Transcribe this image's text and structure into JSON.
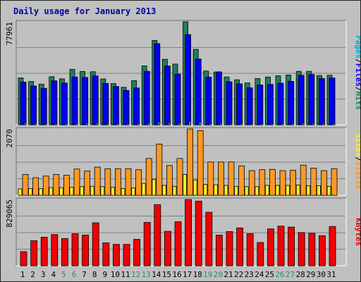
{
  "title": "Daily usage for January 2013",
  "colors": {
    "background": "#c0c0c0",
    "hits": "#1a8060",
    "files": "#0000ee",
    "pages": "#00b0d0",
    "visits": "#ff9922",
    "sites": "#ffee22",
    "kbytes": "#ee0000",
    "title": "#0000a0",
    "weekend_label": "#2a8a70"
  },
  "chart_data": [
    {
      "type": "bar",
      "ylim": [
        0,
        77961
      ],
      "max_label": "77961",
      "legend": [
        {
          "label": "Pages",
          "color": "#00b0d0"
        },
        {
          "label": "Files",
          "color": "#0000ee"
        },
        {
          "label": "Hits",
          "color": "#1a8060"
        }
      ],
      "categories": [
        "1",
        "2",
        "3",
        "4",
        "5",
        "6",
        "7",
        "8",
        "9",
        "10",
        "11",
        "12",
        "13",
        "14",
        "15",
        "16",
        "17",
        "18",
        "19",
        "20",
        "21",
        "22",
        "23",
        "24",
        "25",
        "26",
        "27",
        "28",
        "29",
        "30",
        "31"
      ],
      "series": [
        {
          "name": "Hits",
          "values": [
            35500,
            32800,
            30800,
            36400,
            34800,
            42000,
            40400,
            40200,
            34700,
            31200,
            28400,
            33400,
            44600,
            63900,
            49600,
            46000,
            77961,
            57100,
            40700,
            40000,
            36200,
            34100,
            31700,
            35000,
            36200,
            37100,
            37700,
            40500,
            40500,
            37300,
            37500
          ]
        },
        {
          "name": "Files",
          "values": [
            32300,
            29400,
            27600,
            33300,
            31600,
            36200,
            35900,
            37000,
            31300,
            29000,
            26000,
            27900,
            40500,
            61500,
            44500,
            38400,
            68300,
            49800,
            36100,
            40100,
            32600,
            31000,
            28000,
            30200,
            30600,
            31500,
            32900,
            37500,
            38100,
            35100,
            35400
          ]
        },
        {
          "name": "Pages",
          "values": [
            1400,
            1100,
            1000,
            1100,
            1000,
            1200,
            1300,
            1500,
            1100,
            1100,
            1000,
            1100,
            1600,
            2300,
            1700,
            1500,
            2600,
            2200,
            1200,
            1300,
            1100,
            1000,
            1000,
            1000,
            1100,
            1200,
            1200,
            1300,
            1300,
            1200,
            1100
          ]
        }
      ],
      "weekend_days": [
        "5",
        "6",
        "12",
        "13",
        "19",
        "20",
        "26",
        "27"
      ]
    },
    {
      "type": "bar",
      "ylim": [
        0,
        2070
      ],
      "max_label": "2070",
      "legend": [
        {
          "label": "Sites",
          "color": "#ffee22"
        },
        {
          "label": "Visits",
          "color": "#ff9922"
        }
      ],
      "categories": [
        "1",
        "2",
        "3",
        "4",
        "5",
        "6",
        "7",
        "8",
        "9",
        "10",
        "11",
        "12",
        "13",
        "14",
        "15",
        "16",
        "17",
        "18",
        "19",
        "20",
        "21",
        "22",
        "23",
        "24",
        "25",
        "26",
        "27",
        "28",
        "29",
        "30",
        "31"
      ],
      "series": [
        {
          "name": "Visits",
          "values": [
            650,
            550,
            600,
            650,
            630,
            820,
            760,
            880,
            830,
            830,
            830,
            800,
            1150,
            1600,
            930,
            1150,
            2070,
            2020,
            1040,
            1040,
            1040,
            920,
            770,
            800,
            810,
            770,
            780,
            940,
            850,
            770,
            830
          ]
        },
        {
          "name": "Sites",
          "values": [
            200,
            210,
            210,
            240,
            240,
            250,
            270,
            280,
            270,
            250,
            210,
            230,
            370,
            500,
            310,
            280,
            650,
            480,
            340,
            330,
            310,
            280,
            270,
            270,
            310,
            310,
            310,
            320,
            300,
            300,
            280
          ]
        }
      ]
    },
    {
      "type": "bar",
      "ylim": [
        0,
        829065
      ],
      "max_label": "829065",
      "legend": [
        {
          "label": "KBytes",
          "color": "#ee0000"
        }
      ],
      "categories": [
        "1",
        "2",
        "3",
        "4",
        "5",
        "6",
        "7",
        "8",
        "9",
        "10",
        "11",
        "12",
        "13",
        "14",
        "15",
        "16",
        "17",
        "18",
        "19",
        "20",
        "21",
        "22",
        "23",
        "24",
        "25",
        "26",
        "27",
        "28",
        "29",
        "30",
        "31"
      ],
      "series": [
        {
          "name": "KBytes",
          "values": [
            177000,
            314000,
            358000,
            391000,
            341000,
            401000,
            385000,
            538000,
            287000,
            268000,
            268000,
            331000,
            543000,
            765000,
            431000,
            551000,
            829065,
            809000,
            670000,
            384000,
            428000,
            474000,
            402000,
            291000,
            462000,
            496000,
            484000,
            416000,
            406000,
            377000,
            492000
          ]
        }
      ]
    }
  ]
}
